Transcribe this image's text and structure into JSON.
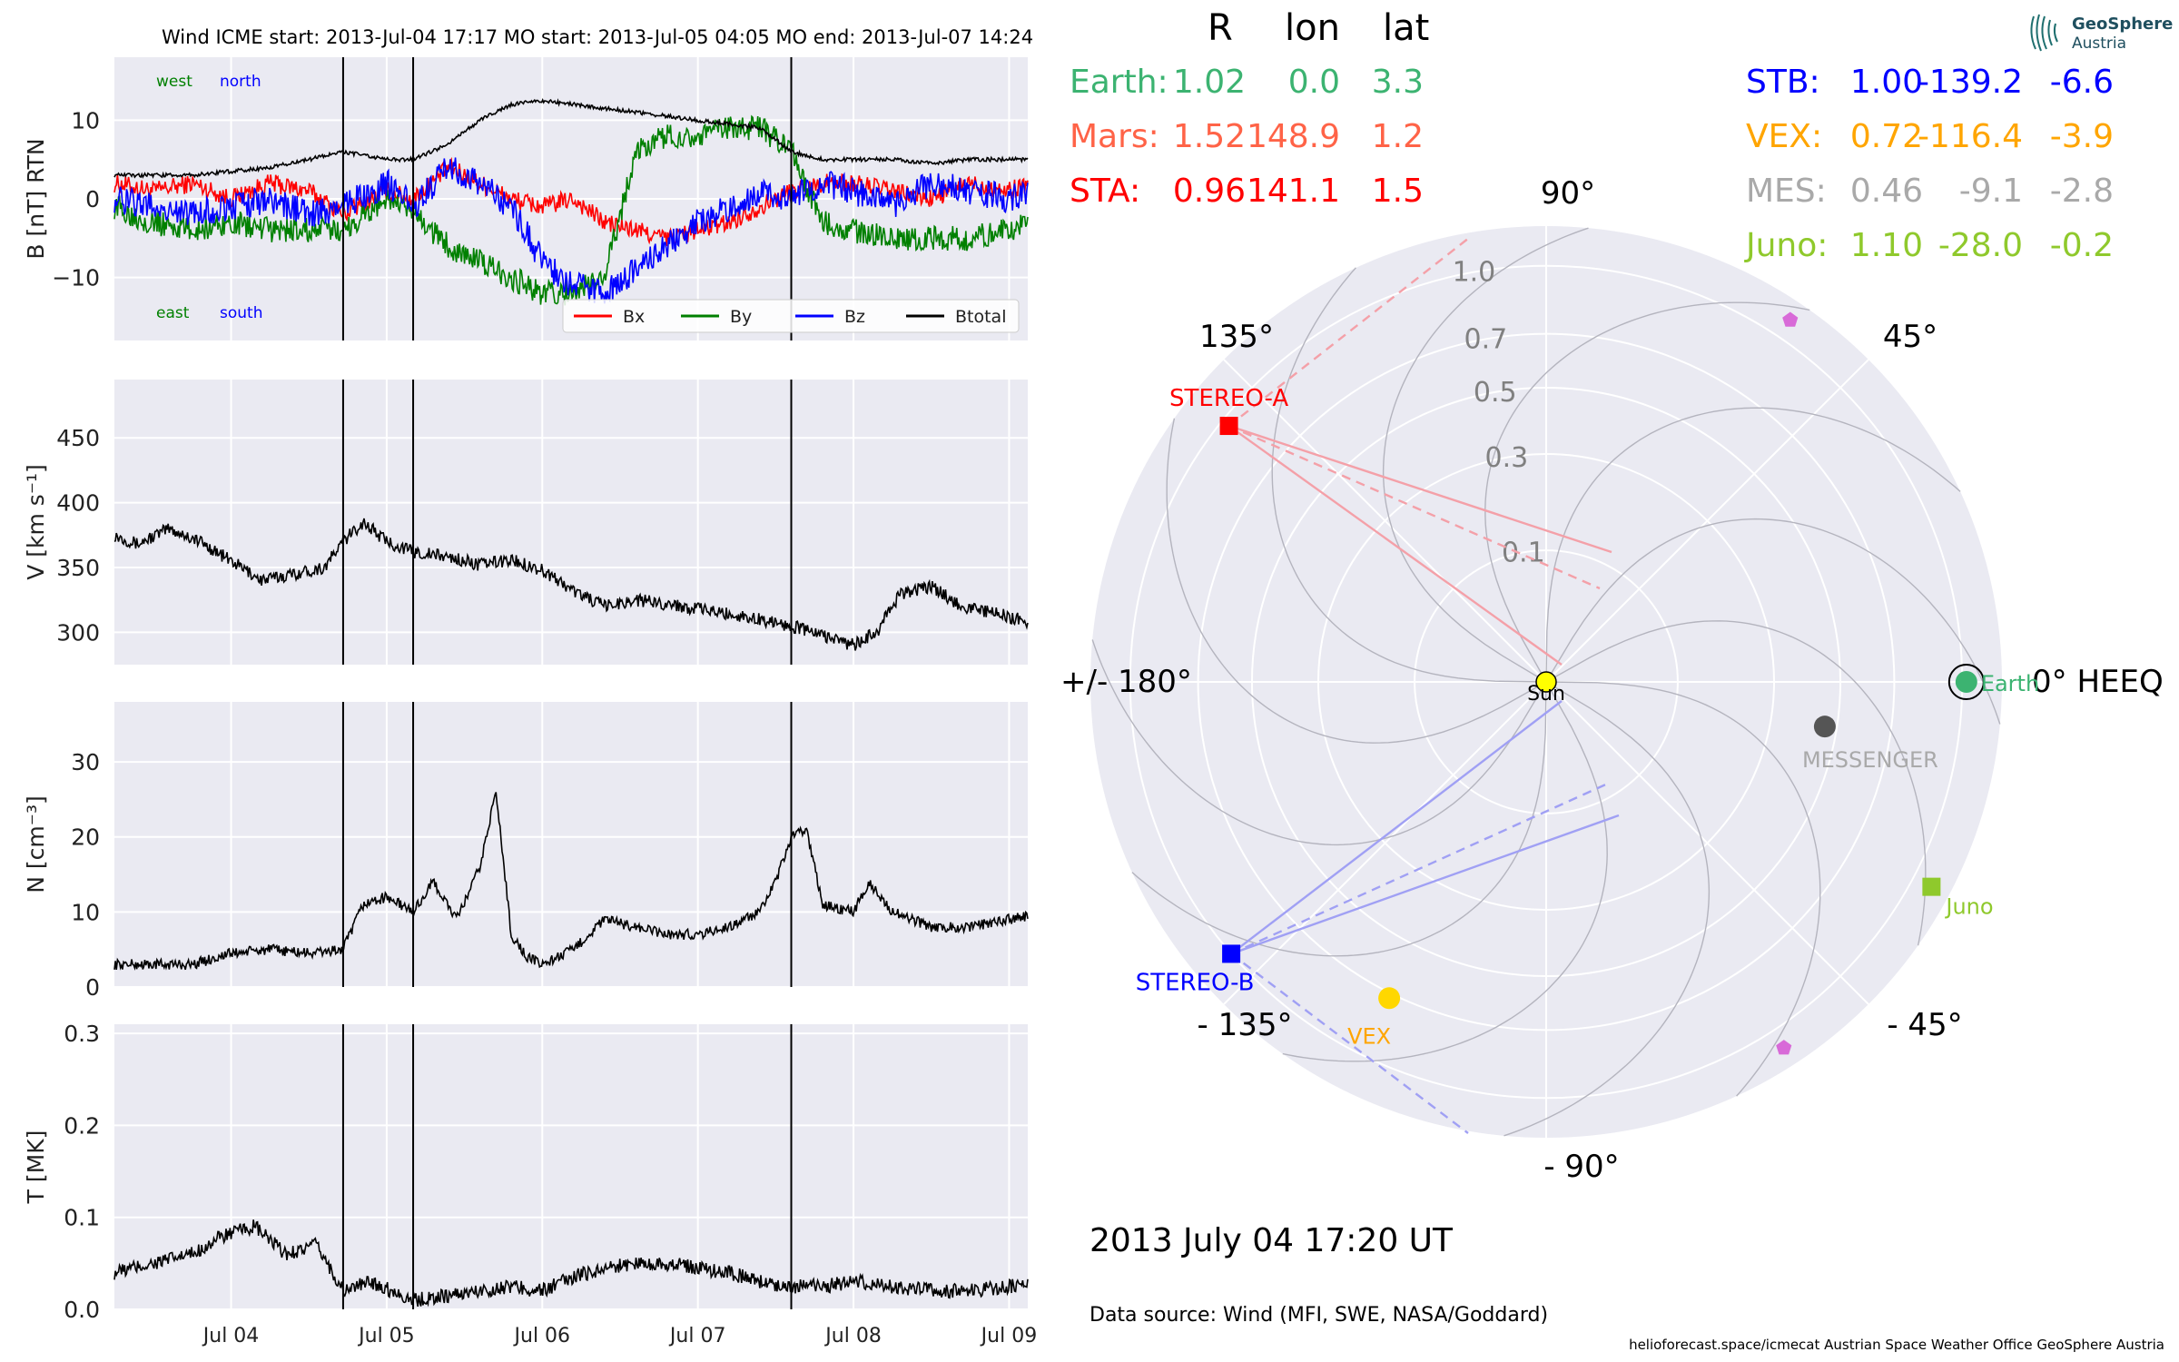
{
  "title_line": "Wind    ICME start: 2013-Jul-04 17:17   MO start: 2013-Jul-05 04:05   MO end: 2013-Jul-07 14:24",
  "colors": {
    "bx": "#ff0000",
    "by": "#008000",
    "bz": "#0000ff",
    "btotal": "#000000",
    "panel_bg": "#eaeaf2",
    "earth": "#3cb371",
    "mars": "#ff6347",
    "sta": "#ff0000",
    "stb": "#0000ff",
    "vex": "#ffa500",
    "mes": "#a9a9a9",
    "juno": "#8fc92c",
    "pink": "#d86ad8"
  },
  "chart_data": [
    {
      "type": "line",
      "panel": "magnetic field",
      "ylabel": "B [nT] RTN",
      "ylim": [
        -18,
        18
      ],
      "yticks": [
        "10",
        "0",
        "−10"
      ],
      "ytick_values": [
        10,
        0,
        -10
      ],
      "x_ticks": [
        "Jul 04",
        "Jul 05",
        "Jul 06",
        "Jul 07",
        "Jul 08",
        "Jul 09"
      ],
      "x_tick_days": [
        4.0,
        5.0,
        6.0,
        7.0,
        8.0,
        9.0
      ],
      "xlim_days": [
        3.25,
        9.12
      ],
      "event_lines_days": [
        4.72,
        5.17,
        7.6
      ],
      "annotations": {
        "west": "west",
        "north": "north",
        "east": "east",
        "south": "south"
      },
      "legend": [
        "Bx",
        "By",
        "Bz",
        "Btotal"
      ],
      "legend_position": "lower right",
      "series": [
        {
          "name": "Bx",
          "x": [
            3.25,
            3.5,
            3.75,
            4.0,
            4.25,
            4.5,
            4.72,
            5.0,
            5.17,
            5.4,
            5.6,
            5.8,
            6.0,
            6.2,
            6.4,
            6.6,
            6.8,
            7.0,
            7.2,
            7.4,
            7.6,
            7.8,
            8.0,
            8.25,
            8.5,
            8.75,
            9.0,
            9.12
          ],
          "y": [
            2,
            1,
            2,
            0,
            2,
            1,
            -2,
            1,
            0,
            4,
            2,
            0,
            -1,
            0,
            -3,
            -4,
            -5,
            -4,
            -3,
            -1,
            1,
            2,
            2,
            1,
            0,
            2,
            1,
            2
          ]
        },
        {
          "name": "By",
          "x": [
            3.25,
            3.5,
            3.75,
            4.0,
            4.25,
            4.5,
            4.72,
            5.0,
            5.17,
            5.4,
            5.6,
            5.8,
            6.0,
            6.2,
            6.4,
            6.6,
            6.8,
            7.0,
            7.2,
            7.4,
            7.6,
            7.8,
            8.0,
            8.25,
            8.5,
            8.75,
            9.0,
            9.12
          ],
          "y": [
            -1,
            -3,
            -4,
            -3,
            -4,
            -4,
            -4,
            0,
            -2,
            -6,
            -8,
            -10,
            -12,
            -12,
            -10,
            6,
            8,
            8,
            9,
            9,
            6,
            -3,
            -4,
            -5,
            -5,
            -5,
            -4,
            -3
          ]
        },
        {
          "name": "Bz",
          "x": [
            3.25,
            3.5,
            3.75,
            4.0,
            4.25,
            4.5,
            4.72,
            5.0,
            5.17,
            5.4,
            5.6,
            5.8,
            6.0,
            6.2,
            6.4,
            6.6,
            6.8,
            7.0,
            7.2,
            7.4,
            7.6,
            7.8,
            8.0,
            8.25,
            8.5,
            8.75,
            9.0,
            9.12
          ],
          "y": [
            0,
            -1,
            -2,
            -1,
            0,
            -2,
            -1,
            2,
            -1,
            4,
            2,
            -1,
            -8,
            -11,
            -12,
            -9,
            -6,
            -3,
            -1,
            1,
            0,
            2,
            1,
            -1,
            2,
            1,
            0,
            1
          ]
        },
        {
          "name": "Btotal",
          "x": [
            3.25,
            3.5,
            3.75,
            4.0,
            4.25,
            4.5,
            4.72,
            5.0,
            5.17,
            5.4,
            5.6,
            5.8,
            6.0,
            6.2,
            6.4,
            6.6,
            6.8,
            7.0,
            7.2,
            7.4,
            7.6,
            7.8,
            8.0,
            8.25,
            8.5,
            8.75,
            9.0,
            9.12
          ],
          "y": [
            3,
            3,
            3,
            3.5,
            4,
            5,
            6,
            5,
            5,
            7,
            10,
            12,
            12.5,
            12,
            11.5,
            11,
            10.5,
            10,
            9.5,
            9,
            6,
            5,
            5,
            5,
            4.5,
            5,
            5,
            5
          ]
        }
      ]
    },
    {
      "type": "line",
      "panel": "speed",
      "ylabel": "V [km s⁻¹]",
      "ylim": [
        275,
        495
      ],
      "yticks": [
        "450",
        "400",
        "350",
        "300"
      ],
      "ytick_values": [
        450,
        400,
        350,
        300
      ],
      "xlim_days": [
        3.25,
        9.12
      ],
      "event_lines_days": [
        4.72,
        5.17,
        7.6
      ],
      "series": [
        {
          "name": "V",
          "x": [
            3.25,
            3.4,
            3.6,
            3.8,
            4.0,
            4.2,
            4.4,
            4.6,
            4.72,
            4.85,
            5.0,
            5.17,
            5.4,
            5.6,
            5.8,
            6.0,
            6.2,
            6.4,
            6.6,
            6.8,
            7.0,
            7.2,
            7.4,
            7.6,
            7.8,
            8.0,
            8.15,
            8.3,
            8.5,
            8.7,
            8.9,
            9.12
          ],
          "y": [
            375,
            368,
            380,
            370,
            355,
            340,
            345,
            350,
            370,
            385,
            370,
            362,
            358,
            352,
            356,
            348,
            332,
            320,
            325,
            322,
            318,
            314,
            310,
            305,
            298,
            290,
            300,
            330,
            335,
            320,
            315,
            308
          ]
        }
      ]
    },
    {
      "type": "line",
      "panel": "density",
      "ylabel": "N [cm⁻³]",
      "ylim": [
        0,
        38
      ],
      "yticks": [
        "30",
        "20",
        "10",
        "0"
      ],
      "ytick_values": [
        30,
        20,
        10,
        0
      ],
      "xlim_days": [
        3.25,
        9.12
      ],
      "event_lines_days": [
        4.72,
        5.17,
        7.6
      ],
      "series": [
        {
          "name": "N",
          "x": [
            3.25,
            3.5,
            3.75,
            4.0,
            4.25,
            4.5,
            4.72,
            4.85,
            5.0,
            5.17,
            5.3,
            5.45,
            5.6,
            5.7,
            5.75,
            5.8,
            5.9,
            6.0,
            6.2,
            6.4,
            6.6,
            6.8,
            7.0,
            7.2,
            7.4,
            7.5,
            7.6,
            7.7,
            7.8,
            8.0,
            8.1,
            8.25,
            8.5,
            8.75,
            9.0,
            9.12
          ],
          "y": [
            3,
            3,
            3,
            4.5,
            5,
            4.5,
            5,
            11,
            12,
            10,
            14,
            9,
            16,
            26,
            17,
            7,
            4,
            3,
            5,
            9,
            8,
            7,
            7,
            8,
            10,
            14,
            20,
            21,
            11,
            10,
            14,
            10,
            8,
            8,
            9,
            9.5
          ]
        }
      ]
    },
    {
      "type": "line",
      "panel": "temperature",
      "ylabel": "T [MK]",
      "ylim": [
        0,
        0.31
      ],
      "yticks": [
        "0.3",
        "0.2",
        "0.1",
        "0.0"
      ],
      "ytick_values": [
        0.3,
        0.2,
        0.1,
        0.0
      ],
      "xlim_days": [
        3.25,
        9.12
      ],
      "event_lines_days": [
        4.72,
        5.17,
        7.6
      ],
      "series": [
        {
          "name": "T",
          "x": [
            3.25,
            3.5,
            3.75,
            3.95,
            4.15,
            4.35,
            4.55,
            4.72,
            4.9,
            5.17,
            5.4,
            5.6,
            5.8,
            6.0,
            6.2,
            6.4,
            6.6,
            6.8,
            7.0,
            7.2,
            7.4,
            7.6,
            7.8,
            8.0,
            8.25,
            8.5,
            8.75,
            9.0,
            9.12
          ],
          "y": [
            0.04,
            0.05,
            0.06,
            0.08,
            0.09,
            0.06,
            0.07,
            0.02,
            0.03,
            0.01,
            0.015,
            0.02,
            0.025,
            0.02,
            0.035,
            0.045,
            0.05,
            0.05,
            0.045,
            0.04,
            0.03,
            0.025,
            0.025,
            0.03,
            0.025,
            0.02,
            0.02,
            0.025,
            0.025
          ]
        }
      ]
    },
    {
      "type": "scatter",
      "panel": "polar",
      "title": "",
      "r_labels": [
        "0.1",
        "0.3",
        "0.5",
        "0.7",
        "1.0"
      ],
      "r_values": [
        0.1,
        0.3,
        0.5,
        0.7,
        1.0
      ],
      "angle_labels": {
        "a90": "90°",
        "a45": "45°",
        "a0": "0° HEEQ",
        "am45": "- 45°",
        "am90": "- 90°",
        "am135": "- 135°",
        "a180": "+/- 180°",
        "a135": "135°"
      },
      "bodies": [
        {
          "name": "Sun",
          "label": "Sun",
          "r": 0.0,
          "lon": 0.0,
          "marker": "circle",
          "color": "#ffff00"
        },
        {
          "name": "Earth",
          "label": "Earth",
          "r": 1.02,
          "lon": 0.0,
          "marker": "circle",
          "color": "#3cb371"
        },
        {
          "name": "STEREO-A",
          "label": "STEREO-A",
          "r": 0.96,
          "lon": 141.1,
          "marker": "square",
          "color": "#ff0000"
        },
        {
          "name": "STEREO-B",
          "label": "STEREO-B",
          "r": 1.0,
          "lon": -139.2,
          "marker": "square",
          "color": "#0000ff"
        },
        {
          "name": "VEX",
          "label": "VEX",
          "r": 0.72,
          "lon": -116.4,
          "marker": "circle",
          "color": "#ffd700"
        },
        {
          "name": "MESSENGER",
          "label": "MESSENGER",
          "r": 0.46,
          "lon": -9.1,
          "marker": "circle",
          "color": "#555555"
        },
        {
          "name": "Juno",
          "label": "Juno",
          "r": 1.1,
          "lon": -28.0,
          "marker": "square",
          "color": "#8fc92c"
        },
        {
          "name": "pentagon-1",
          "label": "",
          "r": 1.1,
          "lon": 56.0,
          "marker": "pentagon",
          "color": "#d86ad8"
        },
        {
          "name": "pentagon-2",
          "label": "",
          "r": 1.1,
          "lon": -57.0,
          "marker": "pentagon",
          "color": "#d86ad8"
        }
      ]
    }
  ],
  "positions_table": {
    "headers": [
      "R",
      "lon",
      "lat"
    ],
    "rows_left": [
      {
        "label": "Earth:",
        "r": "1.02",
        "lon": "0.0",
        "lat": "3.3",
        "color": "#3cb371"
      },
      {
        "label": "Mars:",
        "r": "1.52",
        "lon": "148.9",
        "lat": "1.2",
        "color": "#ff6347"
      },
      {
        "label": "STA:",
        "r": "0.96",
        "lon": "141.1",
        "lat": "1.5",
        "color": "#ff0000"
      }
    ],
    "rows_right": [
      {
        "label": "STB:",
        "r": "1.00",
        "lon": "-139.2",
        "lat": "-6.6",
        "color": "#0000ff"
      },
      {
        "label": "VEX:",
        "r": "0.72",
        "lon": "-116.4",
        "lat": "-3.9",
        "color": "#ffa500"
      },
      {
        "label": "MES:",
        "r": "0.46",
        "lon": "-9.1",
        "lat": "-2.8",
        "color": "#a9a9a9"
      },
      {
        "label": "Juno:",
        "r": "1.10",
        "lon": "-28.0",
        "lat": "-0.2",
        "color": "#8fc92c"
      }
    ]
  },
  "date_label": "2013 July 04  17:20 UT",
  "data_source": "Data source: Wind (MFI, SWE, NASA/Goddard)",
  "footer": "helioforecast.space/icmecat   Austrian Space Weather Office   GeoSphere Austria",
  "logo": {
    "line1": "GeoSphere",
    "line2": "Austria",
    "icon": "geosphere-logo-icon"
  }
}
